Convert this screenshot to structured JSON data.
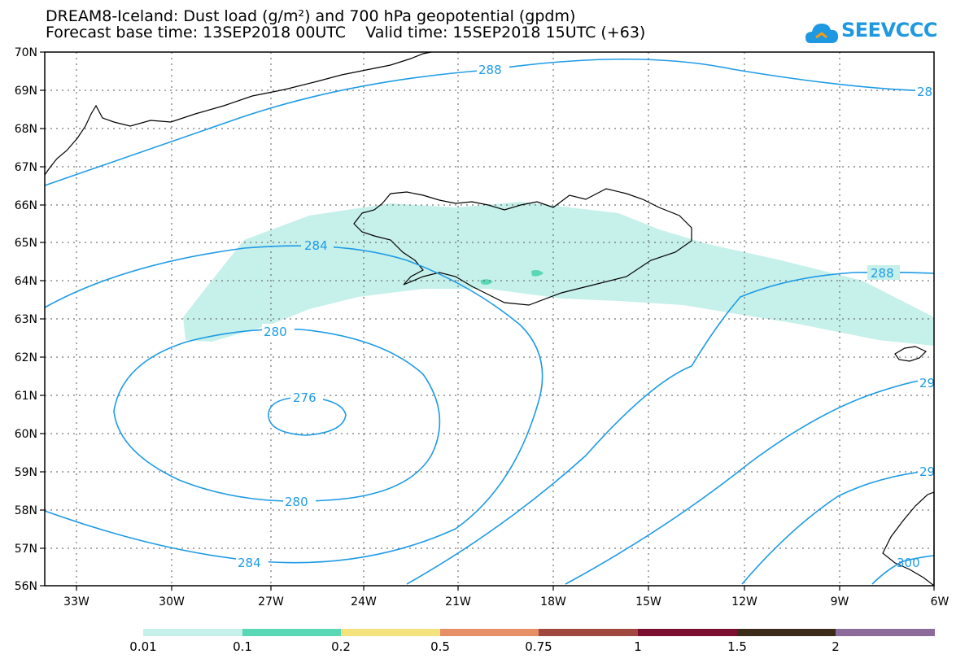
{
  "title": {
    "line1": "DREAM8-Iceland: Dust load (g/m²) and 700 hPa geopotential (gpdm)",
    "line2": "Forecast base time: 13SEP2018 00UTC    Valid time: 15SEP2018 15UTC (+63)"
  },
  "logo": {
    "text": "SEEVCCC"
  },
  "map": {
    "lat_labels": [
      "70N",
      "69N",
      "68N",
      "67N",
      "66N",
      "65N",
      "64N",
      "63N",
      "62N",
      "61N",
      "60N",
      "59N",
      "58N",
      "57N",
      "56N"
    ],
    "lon_labels": [
      "33W",
      "30W",
      "27W",
      "24W",
      "21W",
      "18W",
      "15W",
      "12W",
      "9W",
      "6W"
    ],
    "contour_labels": [
      "288",
      "28",
      "284",
      "288",
      "280",
      "276",
      "280",
      "284",
      "29",
      "29",
      "300"
    ],
    "colors": {
      "contour": "#1e9be6",
      "dust_low": "#c6f0ea",
      "dust_mid": "#5ad7b4",
      "coast": "#000000"
    }
  },
  "colorbar": {
    "labels": [
      "0.01",
      "0.1",
      "0.2",
      "0.5",
      "0.75",
      "1",
      "1.5",
      "2"
    ],
    "colors": [
      "#c6f0ea",
      "#5ad7b4",
      "#f4e37c",
      "#e78f66",
      "#a0473f",
      "#7a0f2f",
      "#3d2b1a",
      "#8c6b9a"
    ]
  }
}
